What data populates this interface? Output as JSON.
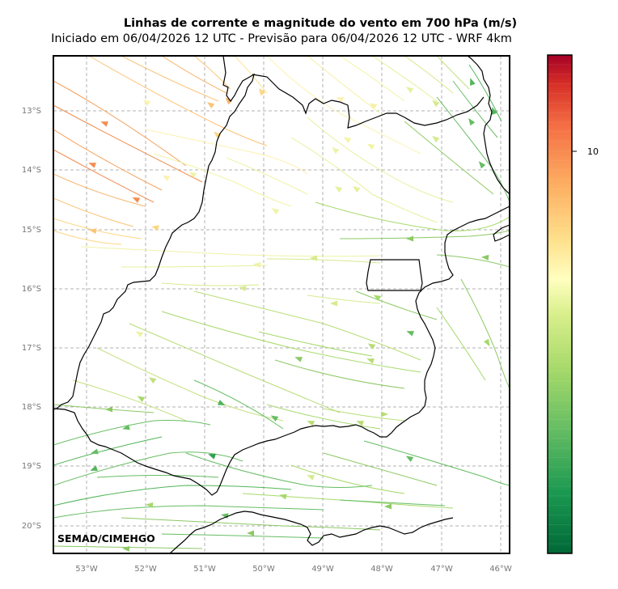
{
  "title": "Linhas de corrente e magnitude do vento em 700 hPa (m/s)",
  "subtitle": "Iniciado em 06/04/2026 12 UTC - Previsão para 06/04/2026 12 UTC - WRF 4km",
  "credit": "SEMAD/CIMEHGO",
  "lat_labels": [
    "13°S",
    "14°S",
    "15°S",
    "16°S",
    "17°S",
    "18°S",
    "19°S",
    "20°S"
  ],
  "lon_labels": [
    "53°W",
    "52°W",
    "51°W",
    "50°W",
    "49°W",
    "48°W",
    "47°W",
    "46°W"
  ],
  "colorbar": {
    "tick_label": "10",
    "palette": "RdYlGn reversed"
  },
  "colors": {
    "strong": "#f08a4b",
    "moderate": "#fdd67f",
    "light": "#eef3a6",
    "calm_green": "#8cc864",
    "deep_green": "#2f9e52",
    "grid": "#b0b0b0",
    "border": "#000000"
  }
}
